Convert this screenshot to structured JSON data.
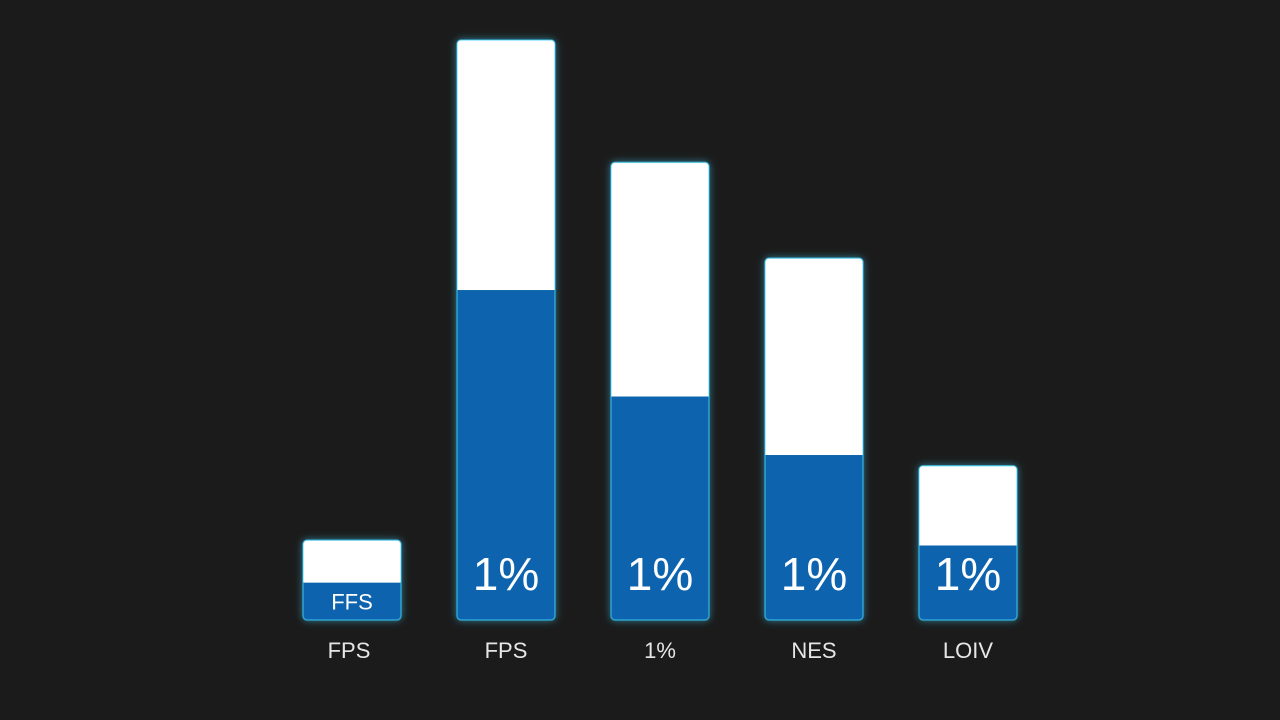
{
  "chart_data": {
    "type": "bar",
    "stacked": true,
    "categories": [
      "FPS",
      "FPS",
      "1%",
      "NES",
      "LOIV"
    ],
    "series": [
      {
        "values": [
          7,
          62,
          42,
          31,
          14
        ]
      },
      {
        "values": [
          8,
          47,
          44,
          37,
          15
        ]
      }
    ],
    "bar_labels": [
      "FFS",
      "1%",
      "1%",
      "1%",
      "1%"
    ],
    "ylim": [
      0,
      109
    ],
    "grid": false,
    "legend": "none",
    "colors": {
      "background": "#1b1b1b",
      "fill_blue": "#0f63ad",
      "fill_white": "#ffffff",
      "glow": "#3fd3ff",
      "text": "#ffffff"
    }
  }
}
